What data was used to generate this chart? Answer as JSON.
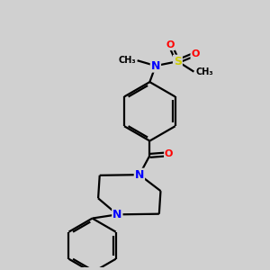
{
  "background_color": "#d0d0d0",
  "bond_color": "#000000",
  "bond_width": 1.6,
  "atom_colors": {
    "N": "#0000ff",
    "O": "#ff0000",
    "S": "#cccc00",
    "C": "#000000"
  },
  "font_size": 7.5,
  "fig_width": 3.0,
  "fig_height": 3.0,
  "dpi": 100
}
